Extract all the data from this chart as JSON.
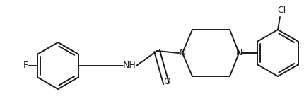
{
  "bg": "#ffffff",
  "lc": "#1a1a1a",
  "lw": 1.4,
  "fs": 8.5,
  "label_F": "F",
  "label_NH": "NH",
  "label_O": "O",
  "label_N": "N",
  "label_Cl": "Cl",
  "xlim": [
    0,
    430
  ],
  "ylim": [
    0,
    150
  ]
}
